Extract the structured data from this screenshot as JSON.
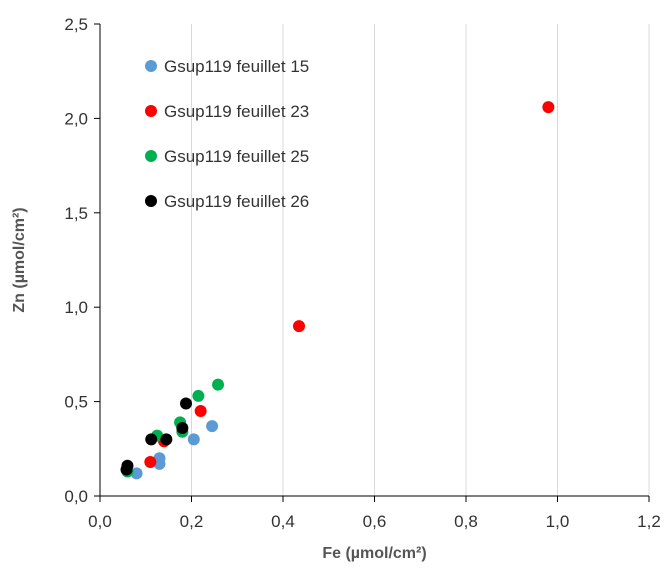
{
  "chart_data": {
    "type": "scatter",
    "xlabel": "Fe (µmol/cm²)",
    "ylabel": "Zn (µmol/cm²)",
    "xlim": [
      0,
      1.2
    ],
    "ylim": [
      0,
      2.5
    ],
    "xticks": [
      "0,0",
      "0,2",
      "0,4",
      "0,6",
      "0,8",
      "1,0",
      "1,2"
    ],
    "yticks": [
      "0,0",
      "0,5",
      "1,0",
      "1,5",
      "2,0",
      "2,5"
    ],
    "grid": "vertical",
    "legend_position": "top-left",
    "series": [
      {
        "name": "Gsup119 feuillet 15",
        "color": "#5b9bd5",
        "points": [
          [
            0.08,
            0.12
          ],
          [
            0.13,
            0.17
          ],
          [
            0.13,
            0.2
          ],
          [
            0.205,
            0.3
          ],
          [
            0.245,
            0.37
          ]
        ]
      },
      {
        "name": "Gsup119 feuillet 23",
        "color": "#ff0000",
        "points": [
          [
            0.11,
            0.18
          ],
          [
            0.14,
            0.29
          ],
          [
            0.22,
            0.45
          ],
          [
            0.435,
            0.9
          ],
          [
            0.98,
            2.06
          ]
        ]
      },
      {
        "name": "Gsup119 feuillet 25",
        "color": "#00b050",
        "points": [
          [
            0.06,
            0.13
          ],
          [
            0.125,
            0.32
          ],
          [
            0.175,
            0.39
          ],
          [
            0.18,
            0.34
          ],
          [
            0.215,
            0.53
          ],
          [
            0.258,
            0.59
          ]
        ]
      },
      {
        "name": "Gsup119 feuillet 26",
        "color": "#000000",
        "points": [
          [
            0.058,
            0.14
          ],
          [
            0.06,
            0.16
          ],
          [
            0.112,
            0.3
          ],
          [
            0.145,
            0.3
          ],
          [
            0.18,
            0.36
          ],
          [
            0.188,
            0.49
          ]
        ]
      }
    ]
  }
}
